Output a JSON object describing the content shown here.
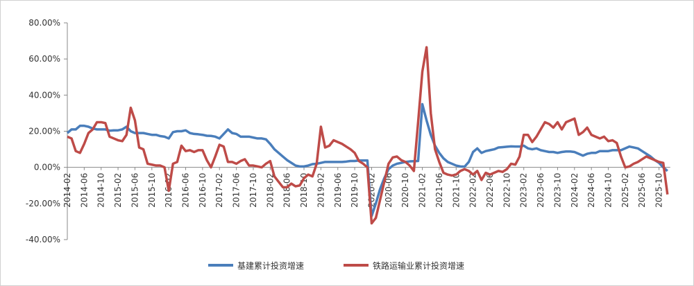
{
  "chart_data": {
    "type": "line",
    "categories": [
      "2014-02",
      null,
      null,
      null,
      "2014-06",
      null,
      null,
      null,
      "2014-10",
      null,
      null,
      null,
      "2015-02",
      null,
      null,
      null,
      "2015-06",
      null,
      null,
      null,
      "2015-10",
      null,
      null,
      null,
      "2016-02",
      null,
      null,
      null,
      "2016-06",
      null,
      null,
      null,
      "2016-10",
      null,
      null,
      null,
      "2017-02",
      null,
      null,
      null,
      "2017-06",
      null,
      null,
      null,
      "2017-10",
      null,
      null,
      null,
      "2018-02",
      null,
      null,
      null,
      "2018-06",
      null,
      null,
      null,
      "2018-10",
      null,
      null,
      null,
      "2019-02",
      null,
      null,
      null,
      "2019-06",
      null,
      null,
      null,
      "2019-10",
      null,
      null,
      null,
      "2020-02",
      null,
      null,
      null,
      "2020-06",
      null,
      null,
      null,
      "2020-10",
      null,
      null,
      null,
      "2021-02",
      null,
      null,
      null,
      "2021-06",
      null,
      null,
      null,
      "2021-10",
      null,
      null,
      null,
      "2022-02",
      null,
      null,
      null,
      "2022-06",
      null,
      null,
      null,
      "2022-10",
      null,
      null,
      null,
      "2023-02",
      null,
      null,
      null,
      "2023-06",
      null,
      null,
      null,
      "2023-10",
      null,
      null,
      null,
      "2024-02",
      null,
      null,
      null,
      "2024-06",
      null,
      null,
      null,
      "2024-10",
      null,
      null,
      null,
      "2025-02",
      null,
      null,
      null,
      "2025-06",
      null,
      null,
      null,
      "2025-10",
      null,
      null
    ],
    "series": [
      {
        "name": "基建累计投资增速",
        "color": "#4a7ebb",
        "values": [
          19,
          21,
          21,
          23,
          23,
          22.5,
          21.5,
          21,
          21,
          21,
          20.3,
          20.5,
          20.5,
          21,
          22.5,
          20,
          19,
          19,
          19,
          18.5,
          18,
          18,
          17.3,
          17,
          16,
          19.5,
          20,
          20,
          20.5,
          19,
          18.5,
          18.3,
          18,
          17.5,
          17.4,
          17,
          16,
          18.5,
          21,
          19,
          18.5,
          17,
          17,
          17,
          16.5,
          16,
          16,
          15.5,
          13,
          10,
          8,
          6,
          4,
          2.5,
          1,
          0.5,
          0.5,
          1,
          1.8,
          2,
          2.5,
          3,
          3,
          3,
          3,
          3,
          3.2,
          3.5,
          3.5,
          3.8,
          3.8,
          3.8,
          -27,
          -20,
          -12,
          -6,
          -1,
          1,
          2,
          2.5,
          3,
          3.3,
          3.4,
          3.5,
          35,
          26,
          18,
          12,
          8,
          5,
          3,
          2,
          1,
          0.5,
          0.4,
          3,
          8.5,
          10.5,
          8,
          9,
          9.5,
          10,
          11,
          11.2,
          11.4,
          11.6,
          11.5,
          11.5,
          12,
          10.5,
          10,
          10.5,
          9.5,
          9,
          8.5,
          8.5,
          8,
          8.5,
          8.8,
          8.8,
          8.5,
          7.5,
          6.5,
          7.5,
          8,
          8,
          9,
          9,
          9,
          9.5,
          9.5,
          9.5,
          10.5,
          11.5,
          11,
          10.5,
          9,
          7.5,
          6,
          4,
          2.5,
          0,
          -2
        ]
      },
      {
        "name": "铁路运输业累计投资增速",
        "color": "#be4b48",
        "values": [
          17,
          16,
          9,
          8,
          13,
          19,
          21,
          25,
          25,
          24.5,
          17,
          16,
          15,
          14.5,
          18,
          33,
          26,
          11,
          10,
          2,
          1.5,
          1,
          1,
          0,
          -13,
          2,
          3,
          12,
          9,
          9.5,
          8.5,
          9.5,
          9.5,
          4,
          0,
          6,
          12.5,
          11.5,
          3,
          3,
          2,
          3.5,
          4.5,
          1,
          1,
          0.5,
          0,
          2,
          3.5,
          -5,
          -8,
          -11,
          -11,
          -9,
          -10.5,
          -10,
          -6,
          -4,
          -5,
          2,
          22.5,
          11,
          12,
          15,
          14,
          13,
          11.5,
          10,
          8,
          3.5,
          2,
          0,
          -31,
          -28,
          -18,
          -8,
          2,
          5.5,
          6,
          4,
          3,
          1,
          -2,
          25,
          53,
          66.5,
          30,
          10,
          3,
          -3,
          -4,
          -4.5,
          -4,
          -2,
          -1,
          -2,
          -4,
          -2,
          -7,
          -3,
          -4,
          -3,
          -2,
          -2.5,
          -1,
          2,
          1.5,
          6,
          18,
          18,
          14,
          17,
          21,
          25,
          24,
          22,
          25,
          21,
          25,
          26,
          27,
          18,
          19.5,
          22,
          18,
          17,
          16,
          17,
          14.5,
          15,
          13.5,
          6,
          0,
          0.5,
          2,
          3,
          4.5,
          6,
          5,
          4,
          3,
          2.5,
          -15
        ]
      }
    ],
    "ylim": [
      -40,
      80
    ],
    "yticks": [
      {
        "value": -40,
        "label": "-40.00%"
      },
      {
        "value": -20,
        "label": "-20.00%"
      },
      {
        "value": 0,
        "label": "0.00%"
      },
      {
        "value": 20,
        "label": "20.00%"
      },
      {
        "value": 40,
        "label": "40.00%"
      },
      {
        "value": 60,
        "label": "60.00%"
      },
      {
        "value": 80,
        "label": "80.00%"
      }
    ],
    "legend": "bottom"
  }
}
